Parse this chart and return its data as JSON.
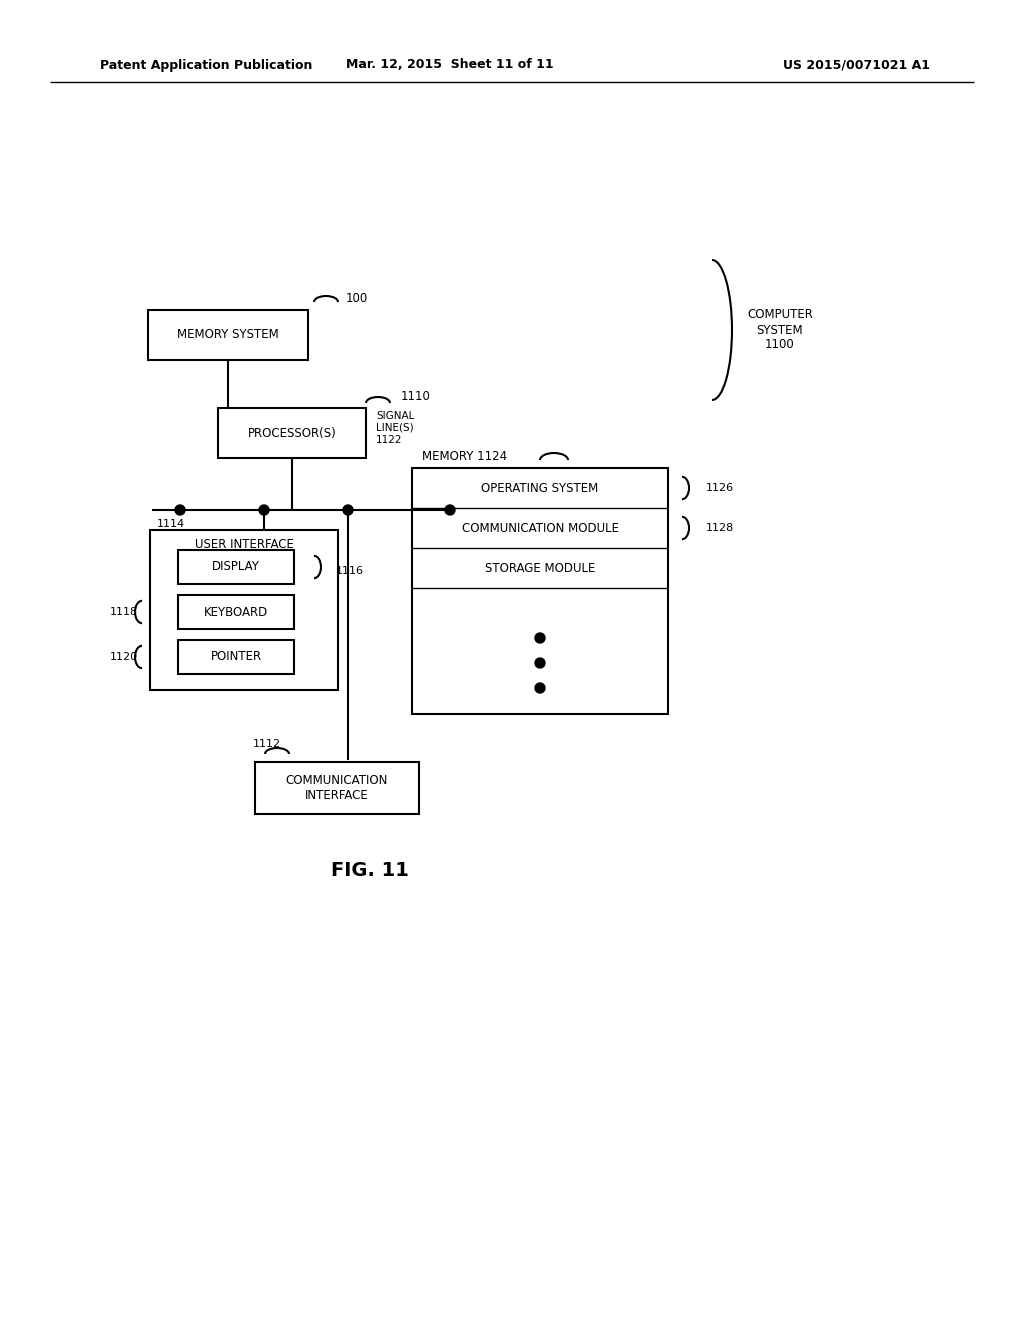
{
  "bg_color": "#ffffff",
  "header_left": "Patent Application Publication",
  "header_mid": "Mar. 12, 2015  Sheet 11 of 11",
  "header_right": "US 2015/0071021 A1",
  "fig_label": "FIG. 11"
}
